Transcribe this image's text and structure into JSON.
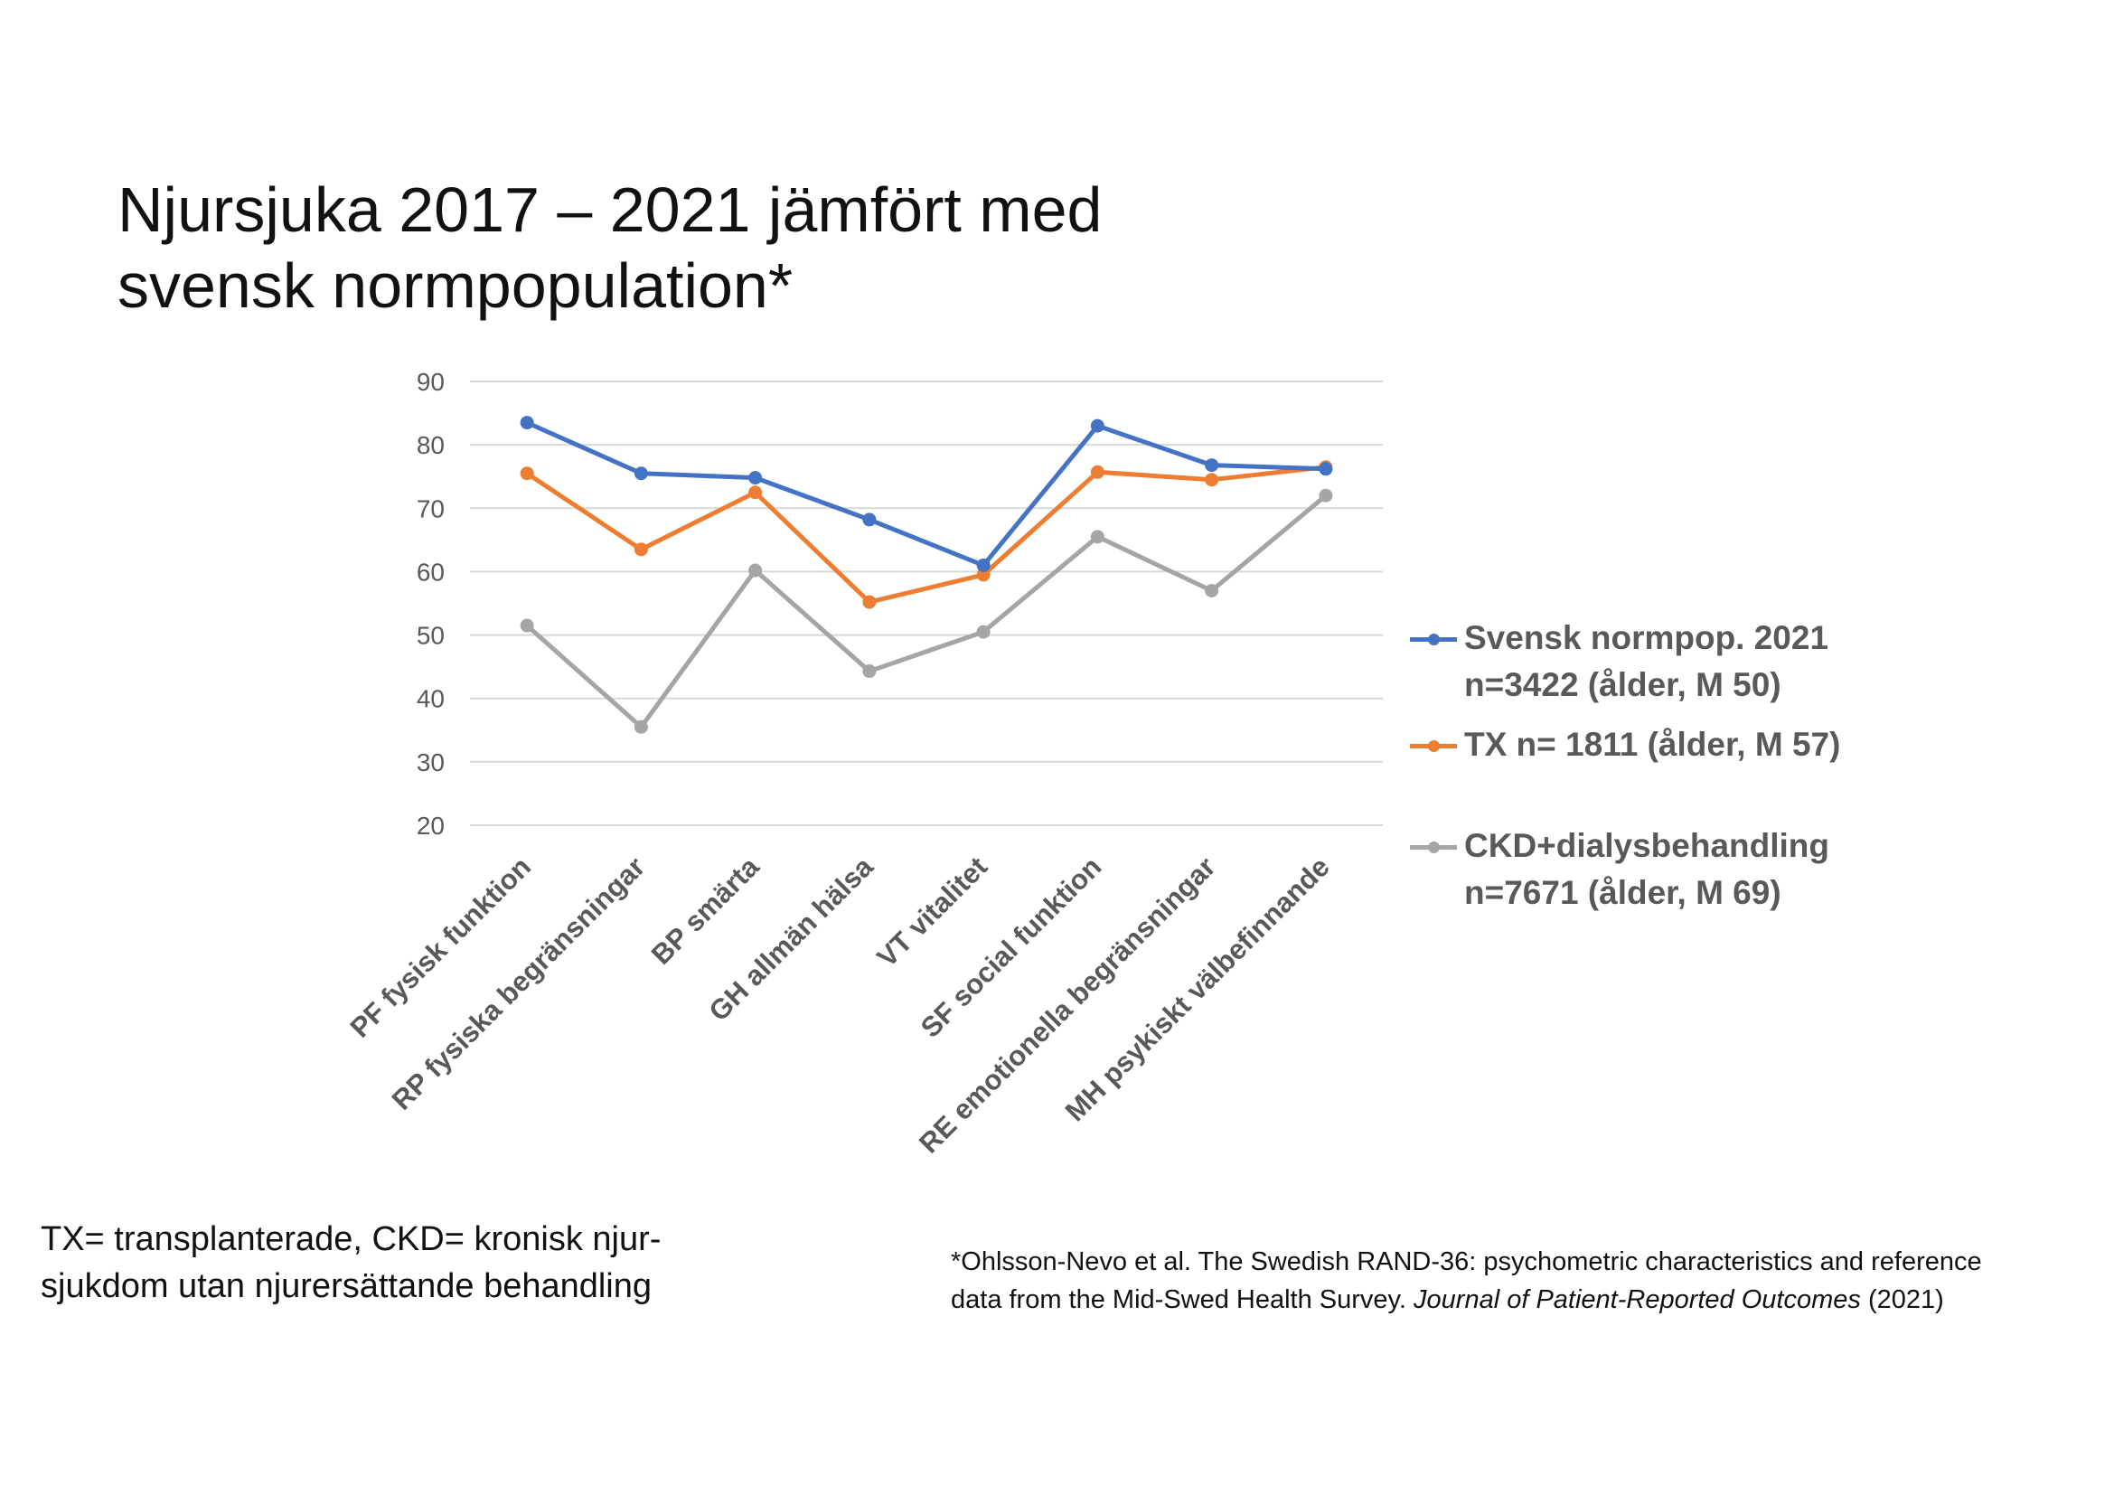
{
  "title": {
    "line1": "Njursjuka 2017 – 2021 jämfört med",
    "line2": "svensk normpopulation*"
  },
  "chart_data": {
    "type": "line",
    "categories": [
      "PF fysisk funktion",
      "RP fysiska begränsningar",
      "BP smärta",
      "GH allmän hälsa",
      "VT vitalitet",
      "SF social funktion",
      "RE emotionella begränsningar",
      "MH psykiskt välbefinnande"
    ],
    "ylim": [
      20,
      90
    ],
    "yticks": [
      20,
      30,
      40,
      50,
      60,
      70,
      80,
      90
    ],
    "grid": "horizontal",
    "legend": "right",
    "series": [
      {
        "name_line1": "Svensk normpop. 2021",
        "name_line2": "n=3422 (ålder, M 50)",
        "color": "#4472C4",
        "values": [
          83.5,
          75.5,
          74.8,
          68.2,
          61,
          83,
          76.8,
          76.2
        ]
      },
      {
        "name_line1": "TX  n= 1811 (ålder, M 57)",
        "name_line2": "",
        "color": "#ED7D31",
        "values": [
          75.5,
          63.5,
          72.5,
          55.2,
          59.5,
          75.7,
          74.5,
          76.5
        ]
      },
      {
        "name_line1": "CKD+dialysbehandling",
        "name_line2": "n=7671 (ålder, M 69)",
        "color": "#A5A5A5",
        "values": [
          51.5,
          35.5,
          60.2,
          44.3,
          50.5,
          65.5,
          57,
          72
        ]
      }
    ]
  },
  "footnote": {
    "line1": "TX= transplanterade, CKD= kronisk njur-",
    "line2": "sjukdom utan njurersättande behandling"
  },
  "reference": {
    "line1": "*Ohlsson-Nevo et al. The Swedish RAND-36: psychometric characteristics and reference",
    "line2_plain": "data from the Mid-Swed Health Survey. ",
    "line2_italic": "Journal of Patient-Reported Outcomes",
    "line2_end": " (2021)"
  }
}
